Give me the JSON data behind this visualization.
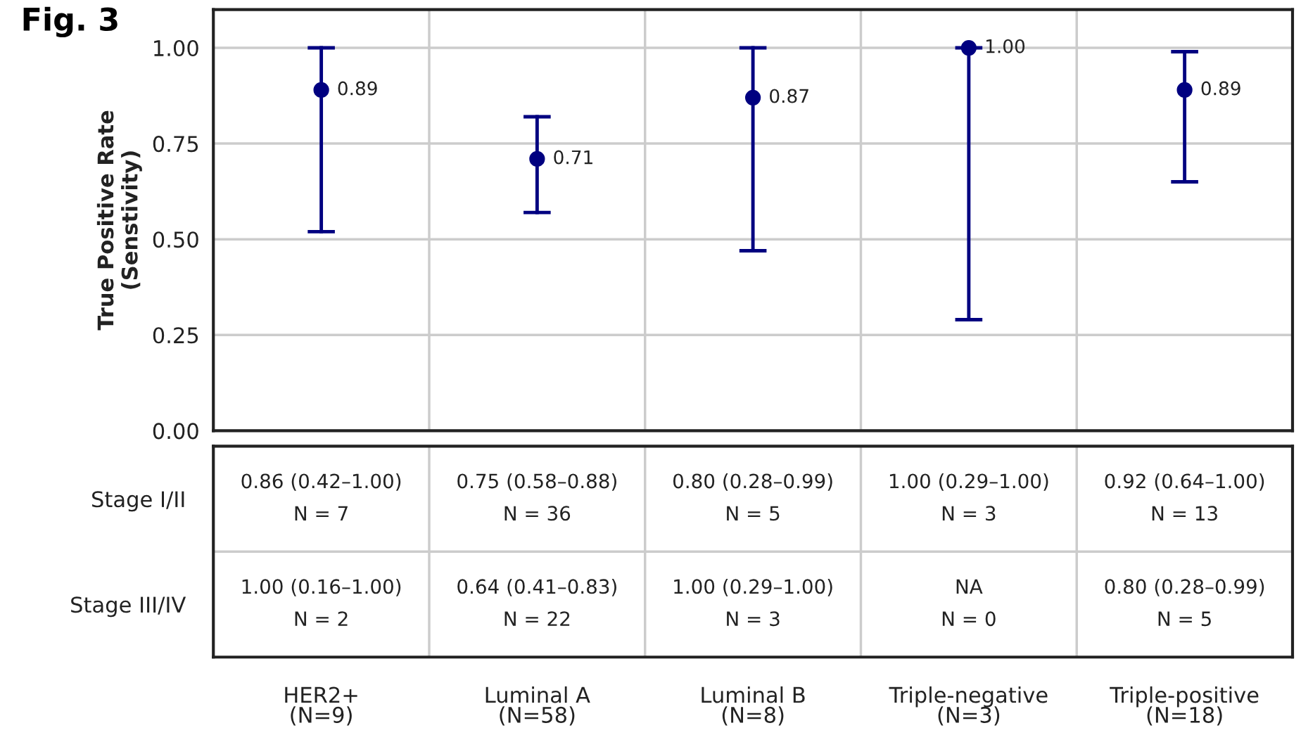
{
  "chart_data": [
    {
      "type": "scatter",
      "title": "Fig. 3",
      "ylabel": "True Positive Rate\n(Senstivity)",
      "categories": [
        null,
        null,
        null,
        null,
        null
      ],
      "values": [
        0.89,
        0.71,
        0.87,
        1.0,
        0.89
      ],
      "errors": [
        [
          0.52,
          1.0
        ],
        [
          0.57,
          0.82
        ],
        [
          0.47,
          1.0
        ],
        [
          0.29,
          1.0
        ],
        [
          0.65,
          0.99
        ]
      ],
      "value_labels": [
        "0.89",
        "0.71",
        "0.87",
        "1.00",
        "0.89"
      ],
      "color": "#000080",
      "marker": "circle",
      "grid": true,
      "tick_labels": "y",
      "ylim": [
        0,
        1.1
      ],
      "yticks": [
        {
          "value": 0,
          "label": "0.00"
        },
        {
          "value": 0.25,
          "label": "0.25"
        },
        {
          "value": 0.5,
          "label": "0.50"
        },
        {
          "value": 0.75,
          "label": "0.75"
        },
        {
          "value": 1,
          "label": "1.00"
        }
      ]
    },
    {
      "type": "other",
      "categories": [
        "HER2+\n(N=9)",
        "Luminal A\n(N=58)",
        "Luminal B\n(N=8)",
        "Triple-negative\n(N=3)",
        "Triple-positive\n(N=18)"
      ],
      "y_categories": [
        "Stage I/II",
        "Stage III/IV"
      ],
      "cell_labels": [
        [
          "0.86 (0.42–1.00)\nN = 7",
          "0.75 (0.58–0.88)\nN = 36",
          "0.80 (0.28–0.99)\nN = 5",
          "1.00 (0.29–1.00)\nN = 3",
          "0.92 (0.64–1.00)\nN = 13"
        ],
        [
          "1.00 (0.16–1.00)\nN = 2",
          "0.64 (0.41–0.83)\nN = 22",
          "1.00 (0.29–1.00)\nN = 3",
          "NA\nN = 0",
          "0.80 (0.28–0.99)\nN = 5"
        ]
      ]
    }
  ]
}
